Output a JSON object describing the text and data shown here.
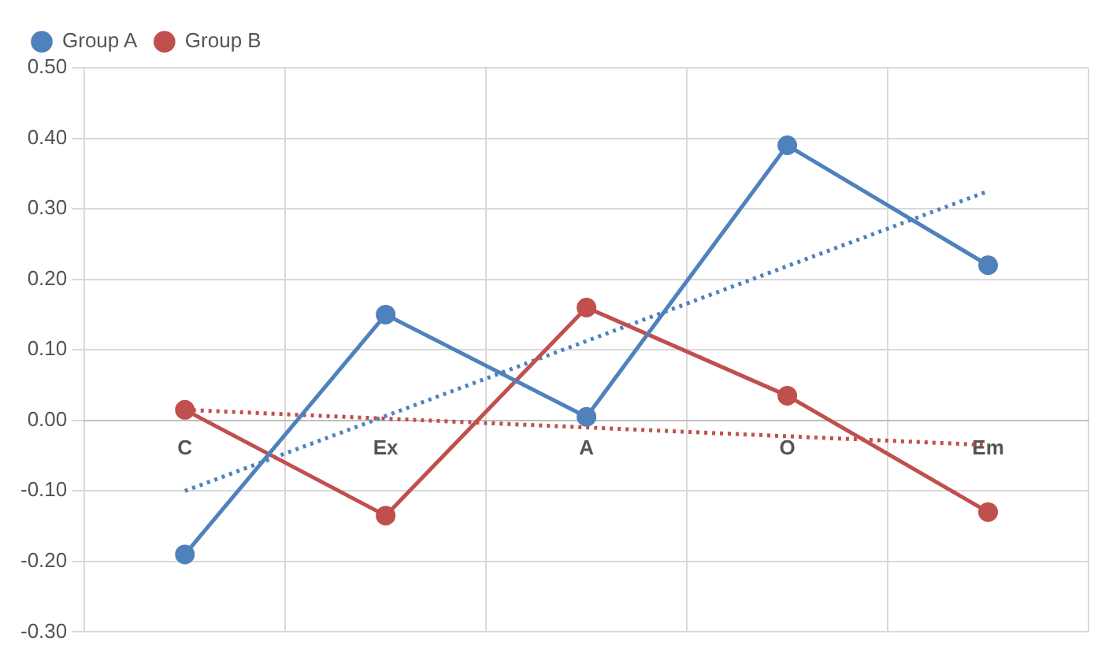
{
  "chart_data": {
    "type": "line",
    "categories": [
      "C",
      "Ex",
      "A",
      "O",
      "Em"
    ],
    "series": [
      {
        "name": "Group A",
        "color": "#4f81bd",
        "values": [
          -0.19,
          0.15,
          0.005,
          0.39,
          0.22
        ],
        "marker": "circle",
        "line_style": "solid"
      },
      {
        "name": "Group B",
        "color": "#c0504d",
        "values": [
          0.015,
          -0.135,
          0.16,
          0.035,
          -0.13
        ],
        "marker": "circle",
        "line_style": "solid"
      },
      {
        "color": "#4f81bd",
        "values": [
          -0.1,
          null,
          null,
          null,
          0.325
        ],
        "marker": "none",
        "line_style": "dotted"
      },
      {
        "color": "#c0504d",
        "values": [
          0.015,
          null,
          null,
          null,
          -0.035
        ],
        "marker": "none",
        "line_style": "dotted"
      }
    ],
    "ylim": [
      -0.3,
      0.5
    ],
    "yticks": [
      {
        "value": -0.3,
        "label": "-0.30"
      },
      {
        "value": -0.2,
        "label": "-0.20"
      },
      {
        "value": -0.1,
        "label": "-0.10"
      },
      {
        "value": 0,
        "label": "0.00"
      },
      {
        "value": 0.1,
        "label": "0.10"
      },
      {
        "value": 0.2,
        "label": "0.20"
      },
      {
        "value": 0.3,
        "label": "0.30"
      },
      {
        "value": 0.4,
        "label": "0.40"
      },
      {
        "value": 0.5,
        "label": "0.50"
      }
    ],
    "grid": true,
    "legend": "top left"
  }
}
